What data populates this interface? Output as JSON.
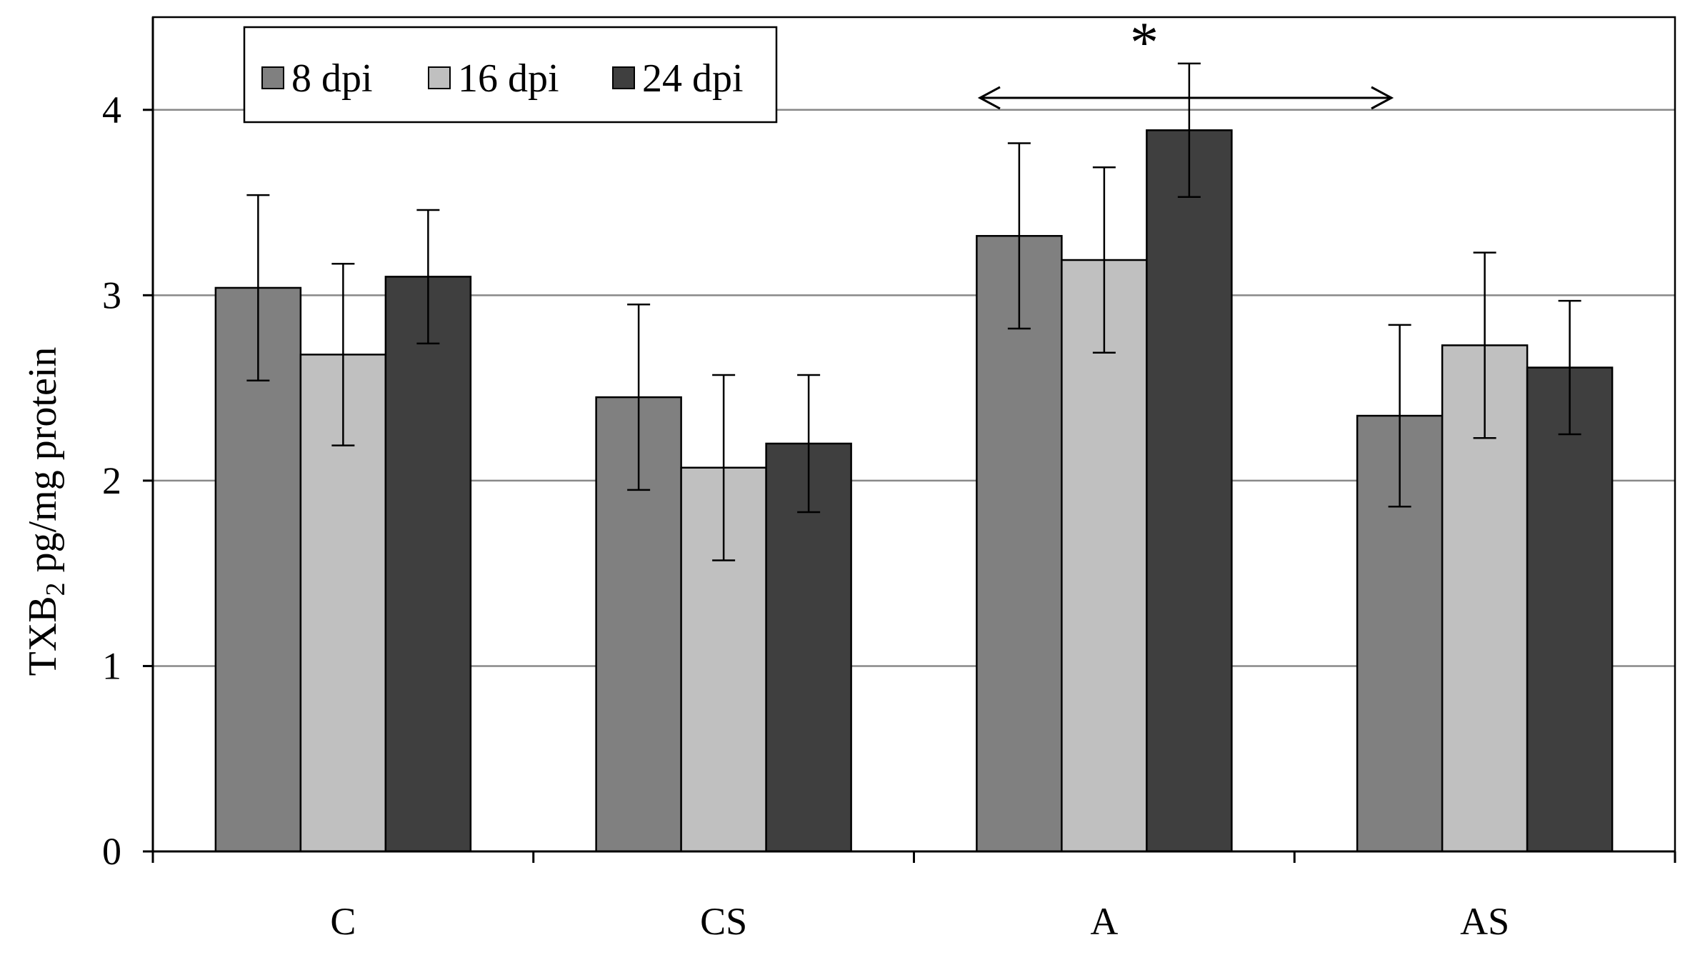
{
  "chart_data": {
    "type": "bar",
    "title": "",
    "xlabel": "",
    "ylabel": "TXB",
    "ylabel_subscript": "2",
    "ylabel_suffix": " pg/mg protein",
    "ylim": [
      0,
      4.5
    ],
    "yticks": [
      "0",
      "1",
      "2",
      "3",
      "4"
    ],
    "ytick_values": [
      0,
      1,
      2,
      3,
      4
    ],
    "grid": true,
    "legend_position": "top-left",
    "categories": [
      "C",
      "CS",
      "A",
      "AS"
    ],
    "series": [
      {
        "name": "8 dpi",
        "color": "#808080",
        "values": [
          3.04,
          2.45,
          3.32,
          2.35
        ],
        "errors": [
          0.5,
          0.5,
          0.5,
          0.49
        ]
      },
      {
        "name": "16 dpi",
        "color": "#c0c0c0",
        "values": [
          2.68,
          2.07,
          3.19,
          2.73
        ],
        "errors": [
          0.49,
          0.5,
          0.5,
          0.5
        ]
      },
      {
        "name": "24 dpi",
        "color": "#3f3f3f",
        "values": [
          3.1,
          2.2,
          3.89,
          2.61
        ],
        "errors": [
          0.36,
          0.37,
          0.36,
          0.36
        ]
      }
    ],
    "annotations": [
      {
        "text": "*",
        "type": "significance",
        "from_category": "A",
        "to_category": "AS"
      }
    ]
  }
}
